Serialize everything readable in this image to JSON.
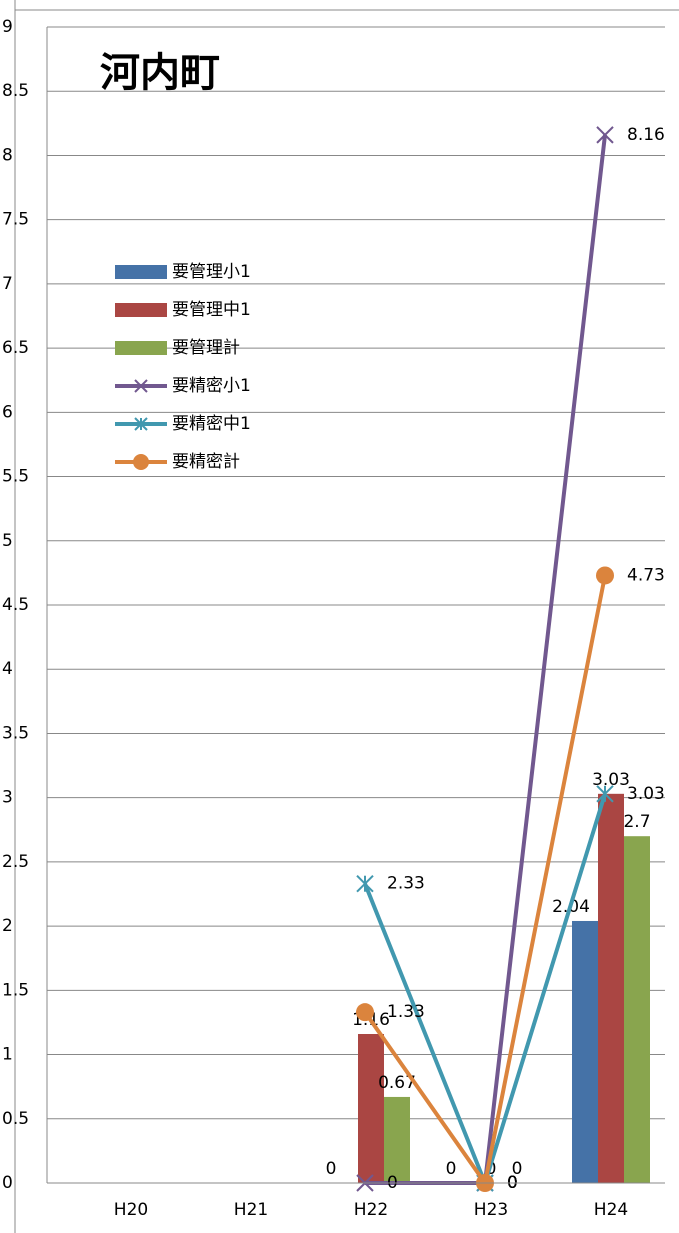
{
  "chart_data": {
    "type": "bar_line",
    "title": "河内町",
    "categories": [
      "H20",
      "H21",
      "H22",
      "H23",
      "H24"
    ],
    "ylim": [
      0,
      9
    ],
    "yticks": [
      0,
      0.5,
      1,
      1.5,
      2,
      2.5,
      3,
      3.5,
      4,
      4.5,
      5,
      5.5,
      6,
      6.5,
      7,
      7.5,
      8,
      8.5,
      9
    ],
    "grid": true,
    "series": [
      {
        "name": "要管理小1",
        "type": "bar",
        "color": "#4572a7",
        "values": [
          null,
          null,
          0,
          0,
          2.04
        ]
      },
      {
        "name": "要管理中1",
        "type": "bar",
        "color": "#aa4643",
        "values": [
          null,
          null,
          1.16,
          0,
          3.03
        ]
      },
      {
        "name": "要管理計",
        "type": "bar",
        "color": "#89a54e",
        "values": [
          null,
          null,
          0.67,
          0,
          2.7
        ]
      },
      {
        "name": "要精密小1",
        "type": "line",
        "marker": "x",
        "color": "#71588f",
        "values": [
          null,
          null,
          0,
          0,
          8.16
        ]
      },
      {
        "name": "要精密中1",
        "type": "line",
        "marker": "star",
        "color": "#4198af",
        "values": [
          null,
          null,
          2.33,
          0,
          3.03
        ]
      },
      {
        "name": "要精密計",
        "type": "line",
        "marker": "circle",
        "color": "#db843d",
        "values": [
          null,
          null,
          1.33,
          0,
          4.73
        ]
      }
    ]
  }
}
